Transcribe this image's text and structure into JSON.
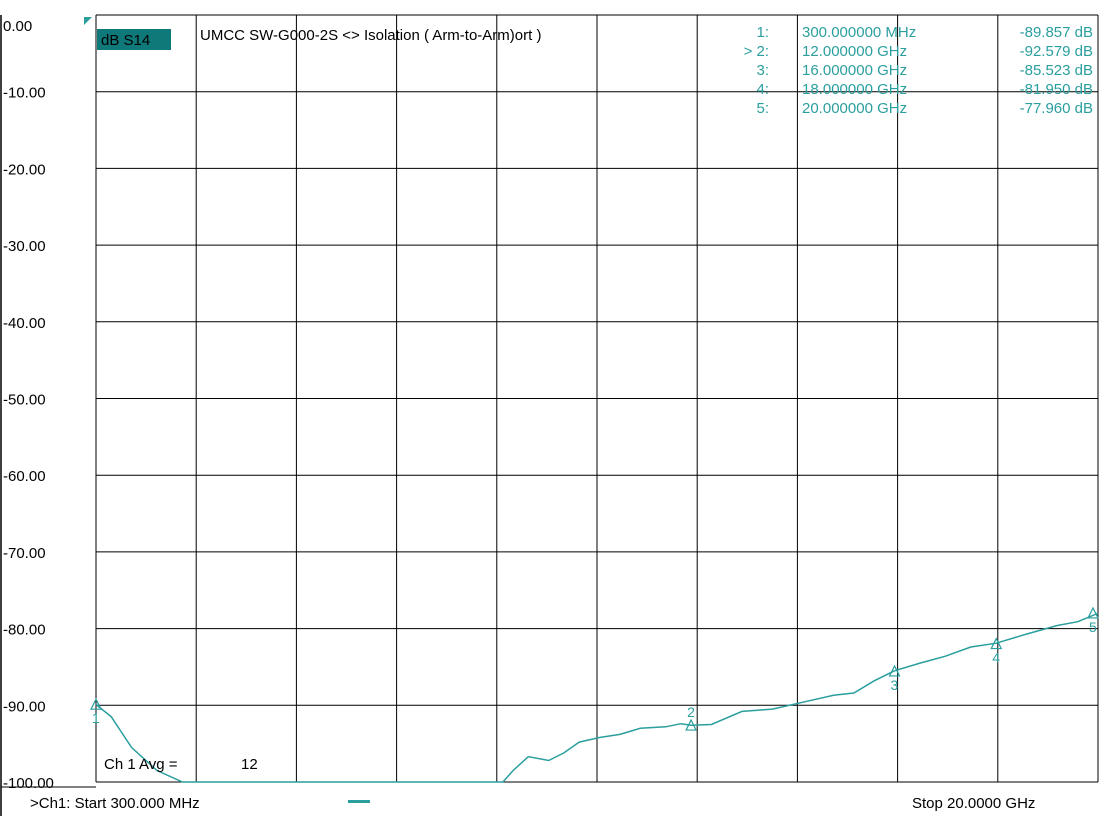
{
  "header": {
    "measurement_label": "dB S14",
    "title": "UMCC SW-G000-2S <> Isolation ( Arm-to-Arm)ort )"
  },
  "average": {
    "label": "Ch 1 Avg =",
    "value": "12"
  },
  "footer": {
    "start_label": ">Ch1: Start 300.000 MHz",
    "stop_label": "Stop 20.0000 GHz"
  },
  "colors": {
    "trace": "#2b9e9e",
    "label_bg": "#0f7878",
    "grid": "#000000",
    "background": "#ffffff"
  },
  "markers": [
    {
      "id": "1:",
      "freq": "300.000000 MHz",
      "value": "-89.857 dB"
    },
    {
      "id": "> 2:",
      "freq": "12.000000 GHz",
      "value": "-92.579 dB"
    },
    {
      "id": "3:",
      "freq": "16.000000 GHz",
      "value": "-85.523 dB"
    },
    {
      "id": "4:",
      "freq": "18.000000 GHz",
      "value": "-81.950 dB"
    },
    {
      "id": "5:",
      "freq": "20.000000 GHz",
      "value": "-77.960 dB"
    }
  ],
  "chart_data": {
    "type": "line",
    "y_tick_labels": [
      "0.00",
      "-10.00",
      "-20.00",
      "-30.00",
      "-40.00",
      "-50.00",
      "-60.00",
      "-70.00",
      "-80.00",
      "-90.00",
      "-100.00"
    ],
    "ylim": [
      -100,
      0
    ],
    "xlim_ghz": [
      0.3,
      20
    ],
    "grid": true,
    "x_divisions": 10,
    "y_divisions": 10,
    "marker_points": [
      {
        "label": "1",
        "x": 0.3,
        "y": -89.857
      },
      {
        "label": "2",
        "x": 12.0,
        "y": -92.579
      },
      {
        "label": "3",
        "x": 16.0,
        "y": -85.523
      },
      {
        "label": "4",
        "x": 18.0,
        "y": -81.95
      },
      {
        "label": "5",
        "x": 20.0,
        "y": -77.96
      }
    ],
    "series": [
      {
        "x": [
          0.3,
          0.6,
          1.0,
          1.5,
          2.0,
          2.5,
          3.0,
          4.0,
          5.0,
          6.0,
          7.0,
          8.0,
          8.3,
          8.5,
          8.8,
          9.2,
          9.5,
          9.8,
          10.2,
          10.6,
          11.0,
          11.5,
          11.8,
          12.0,
          12.4,
          13.0,
          13.6,
          14.2,
          14.8,
          15.2,
          15.6,
          16.0,
          16.5,
          17.0,
          17.5,
          18.0,
          18.6,
          19.2,
          19.6,
          20.0
        ],
        "y": [
          -89.9,
          -91.5,
          -95.5,
          -98.5,
          -100.0,
          -100.0,
          -100.0,
          -100.0,
          -100.0,
          -100.0,
          -100.0,
          -100.0,
          -100.0,
          -98.5,
          -96.7,
          -97.2,
          -96.2,
          -94.8,
          -94.2,
          -93.8,
          -93.0,
          -92.8,
          -92.4,
          -92.6,
          -92.5,
          -90.8,
          -90.5,
          -89.6,
          -88.7,
          -88.4,
          -86.8,
          -85.5,
          -84.5,
          -83.6,
          -82.4,
          -81.9,
          -80.7,
          -79.6,
          -79.1,
          -78.0
        ]
      }
    ]
  }
}
